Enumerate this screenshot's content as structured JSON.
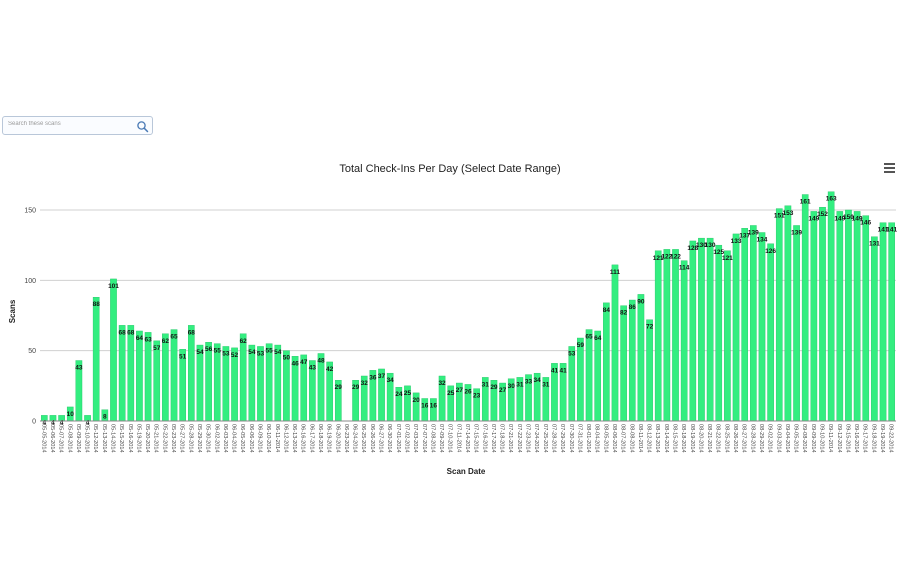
{
  "search": {
    "placeholder": "Search these scans"
  },
  "icons": {
    "search": "search-icon",
    "menu": "hamburger-menu-icon"
  },
  "colors": {
    "bar": "#33ee80",
    "bar_stroke": "#22c466",
    "grid": "#d0d0d0",
    "text": "#222222"
  },
  "chart_data": {
    "type": "bar",
    "title": "Total Check-Ins Per Day (Select Date Range)",
    "xlabel": "Scan Date",
    "ylabel": "Scans",
    "ylim": [
      0,
      170
    ],
    "yticks": [
      0,
      50,
      100,
      150
    ],
    "grid": true,
    "categories": [
      "05-05-2014",
      "05-06-2014",
      "05-07-2014",
      "05-08-2014",
      "05-09-2014",
      "05-10-2014",
      "05-12-2014",
      "05-13-2014",
      "05-14-2014",
      "05-15-2014",
      "05-16-2014",
      "05-19-2014",
      "05-20-2014",
      "05-21-2014",
      "05-22-2014",
      "05-23-2014",
      "05-27-2014",
      "05-28-2014",
      "05-29-2014",
      "05-30-2014",
      "06-02-2014",
      "06-03-2014",
      "06-04-2014",
      "06-05-2014",
      "06-06-2014",
      "06-09-2014",
      "06-10-2014",
      "06-11-2014",
      "06-12-2014",
      "06-13-2014",
      "06-16-2014",
      "06-17-2014",
      "06-18-2014",
      "06-19-2014",
      "06-20-2014",
      "06-23-2014",
      "06-24-2014",
      "06-25-2014",
      "06-26-2014",
      "06-27-2014",
      "06-30-2014",
      "07-01-2014",
      "07-02-2014",
      "07-03-2014",
      "07-07-2014",
      "07-08-2014",
      "07-09-2014",
      "07-10-2014",
      "07-11-2014",
      "07-14-2014",
      "07-15-2014",
      "07-16-2014",
      "07-17-2014",
      "07-18-2014",
      "07-21-2014",
      "07-22-2014",
      "07-23-2014",
      "07-24-2014",
      "07-25-2014",
      "07-28-2014",
      "07-29-2014",
      "07-30-2014",
      "07-31-2014",
      "08-01-2014",
      "08-04-2014",
      "08-05-2014",
      "08-06-2014",
      "08-07-2014",
      "08-08-2014",
      "08-11-2014",
      "08-12-2014",
      "08-13-2014",
      "08-14-2014",
      "08-15-2014",
      "08-18-2014",
      "08-19-2014",
      "08-20-2014",
      "08-21-2014",
      "08-22-2014",
      "08-25-2014",
      "08-26-2014",
      "08-27-2014",
      "08-28-2014",
      "08-29-2014",
      "09-02-2014",
      "09-03-2014",
      "09-04-2014",
      "09-05-2014",
      "09-08-2014",
      "09-09-2014",
      "09-10-2014",
      "09-11-2014",
      "09-12-2014",
      "09-15-2014",
      "09-16-2014",
      "09-17-2014",
      "09-18-2014",
      "09-19-2014",
      "09-22-2014"
    ],
    "values": [
      4,
      4,
      4,
      10,
      43,
      4,
      88,
      8,
      101,
      68,
      68,
      64,
      63,
      57,
      62,
      65,
      51,
      68,
      54,
      56,
      55,
      53,
      52,
      62,
      54,
      53,
      55,
      54,
      50,
      46,
      47,
      43,
      48,
      42,
      29,
      null,
      29,
      32,
      36,
      37,
      34,
      24,
      25,
      20,
      16,
      16,
      32,
      25,
      27,
      26,
      23,
      31,
      29,
      27,
      30,
      31,
      33,
      34,
      31,
      41,
      41,
      53,
      59,
      65,
      64,
      84,
      111,
      82,
      86,
      90,
      72,
      121,
      122,
      122,
      114,
      128,
      130,
      130,
      125,
      121,
      133,
      137,
      139,
      134,
      126,
      151,
      153,
      139,
      161,
      149,
      152,
      163,
      149,
      150,
      149,
      146,
      131,
      141,
      141
    ]
  }
}
